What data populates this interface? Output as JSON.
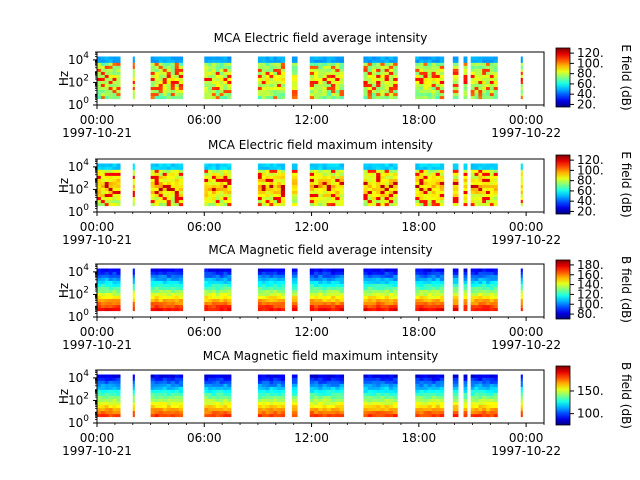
{
  "chart_data": [
    {
      "type": "heatmap",
      "title": "MCA  Electric field average intensity",
      "ylabel": "Hz",
      "y_scale": "log",
      "y_ticks": [
        {
          "exp": "0"
        },
        {
          "exp": "2"
        },
        {
          "exp": "4"
        }
      ],
      "x_ticks": [
        "00:00",
        "06:00",
        "12:00",
        "18:00",
        "00:00"
      ],
      "x_dates": [
        {
          "label": "1997-10-21"
        },
        {
          "label": "1997-10-22"
        }
      ],
      "colorbar": {
        "label": "E field (dB)",
        "range": [
          15,
          130
        ],
        "ticks": [
          "20.",
          "40.",
          "60.",
          "80.",
          "100.",
          "120."
        ],
        "scheme": "jet"
      },
      "data_segments_hours": [
        [
          0.0,
          1.3
        ],
        [
          2.0,
          2.1
        ],
        [
          3.0,
          4.8
        ],
        [
          6.0,
          7.5
        ],
        [
          9.0,
          10.5
        ],
        [
          10.9,
          11.2
        ],
        [
          11.9,
          13.8
        ],
        [
          14.9,
          16.8
        ],
        [
          17.8,
          19.4
        ],
        [
          19.9,
          20.2
        ],
        [
          20.5,
          20.7
        ],
        [
          20.9,
          22.4
        ],
        [
          23.7,
          23.8
        ]
      ],
      "intensity_range_db": [
        40,
        125
      ],
      "base_value_db": 72
    },
    {
      "type": "heatmap",
      "title": "MCA  Electric field maximum intensity",
      "ylabel": "Hz",
      "y_scale": "log",
      "y_ticks": [
        {
          "exp": "0"
        },
        {
          "exp": "2"
        },
        {
          "exp": "4"
        }
      ],
      "x_ticks": [
        "00:00",
        "06:00",
        "12:00",
        "18:00",
        "00:00"
      ],
      "x_dates": [
        {
          "label": "1997-10-21"
        },
        {
          "label": "1997-10-22"
        }
      ],
      "colorbar": {
        "label": "E field (dB)",
        "range": [
          15,
          130
        ],
        "ticks": [
          "20.",
          "40.",
          "60.",
          "80.",
          "100.",
          "120."
        ],
        "scheme": "jet"
      },
      "data_segments_hours": [
        [
          0.0,
          1.3
        ],
        [
          2.0,
          2.1
        ],
        [
          3.0,
          4.8
        ],
        [
          6.0,
          7.5
        ],
        [
          9.0,
          10.5
        ],
        [
          10.9,
          11.2
        ],
        [
          11.9,
          13.8
        ],
        [
          14.9,
          16.8
        ],
        [
          17.8,
          19.4
        ],
        [
          19.9,
          20.2
        ],
        [
          20.5,
          20.7
        ],
        [
          20.9,
          22.4
        ],
        [
          23.7,
          23.8
        ]
      ],
      "intensity_range_db": [
        45,
        128
      ],
      "base_value_db": 80
    },
    {
      "type": "heatmap",
      "title": "MCA  Magnetic field average intensity",
      "ylabel": "Hz",
      "y_scale": "log",
      "y_ticks": [
        {
          "exp": "0"
        },
        {
          "exp": "2"
        },
        {
          "exp": "4"
        }
      ],
      "x_ticks": [
        "00:00",
        "06:00",
        "12:00",
        "18:00",
        "00:00"
      ],
      "x_dates": [
        {
          "label": "1997-10-21"
        },
        {
          "label": "1997-10-22"
        }
      ],
      "colorbar": {
        "label": "B field (dB)",
        "range": [
          70,
          190
        ],
        "ticks": [
          "80.",
          "100.",
          "120.",
          "140.",
          "160.",
          "180."
        ],
        "scheme": "jet"
      },
      "data_segments_hours": [
        [
          0.0,
          1.3
        ],
        [
          2.0,
          2.1
        ],
        [
          3.0,
          4.8
        ],
        [
          6.0,
          7.5
        ],
        [
          9.0,
          10.5
        ],
        [
          10.9,
          11.2
        ],
        [
          11.9,
          13.8
        ],
        [
          14.9,
          16.8
        ],
        [
          17.8,
          19.4
        ],
        [
          19.9,
          20.2
        ],
        [
          20.5,
          20.7
        ],
        [
          20.9,
          22.4
        ],
        [
          23.7,
          23.8
        ]
      ],
      "intensity_range_db": [
        80,
        178
      ],
      "base_value_db": 130
    },
    {
      "type": "heatmap",
      "title": "MCA  Magnetic field maximum intensity",
      "ylabel": "Hz",
      "y_scale": "log",
      "y_ticks": [
        {
          "exp": "0"
        },
        {
          "exp": "2"
        },
        {
          "exp": "4"
        }
      ],
      "x_ticks": [
        "00:00",
        "06:00",
        "12:00",
        "18:00",
        "00:00"
      ],
      "x_dates": [
        {
          "label": "1997-10-21"
        },
        {
          "label": "1997-10-22"
        }
      ],
      "colorbar": {
        "label": "B field (dB)",
        "range": [
          75,
          205
        ],
        "ticks": [
          "100.",
          "150."
        ],
        "scheme": "jet"
      },
      "data_segments_hours": [
        [
          0.0,
          1.3
        ],
        [
          2.0,
          2.1
        ],
        [
          3.0,
          4.8
        ],
        [
          6.0,
          7.5
        ],
        [
          9.0,
          10.5
        ],
        [
          10.9,
          11.2
        ],
        [
          11.9,
          13.8
        ],
        [
          14.9,
          16.8
        ],
        [
          17.8,
          19.4
        ],
        [
          19.9,
          20.2
        ],
        [
          20.5,
          20.7
        ],
        [
          20.9,
          22.4
        ],
        [
          23.7,
          23.8
        ]
      ],
      "intensity_range_db": [
        85,
        185
      ],
      "base_value_db": 140
    }
  ]
}
